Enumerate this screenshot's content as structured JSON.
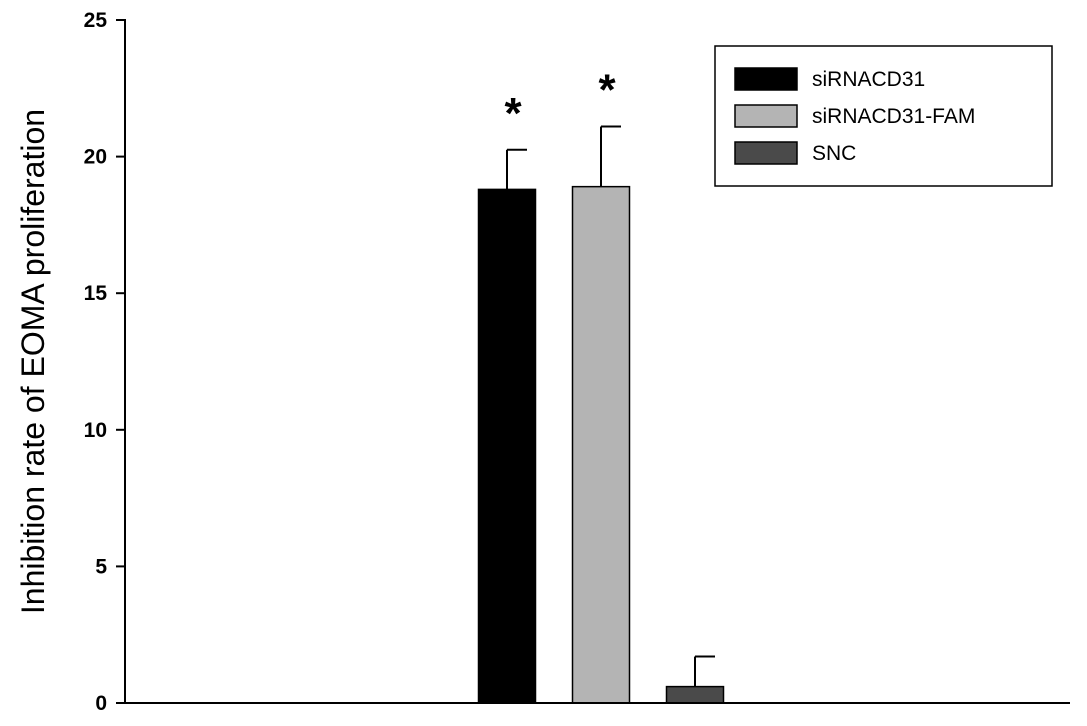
{
  "chart_data": {
    "type": "bar",
    "title": "",
    "xlabel": "",
    "ylabel": "Inhibition rate of EOMA proliferation",
    "ylim": [
      0,
      25
    ],
    "yticks": [
      0,
      5,
      10,
      15,
      20,
      25
    ],
    "yticks_labels": [
      "0",
      "5",
      "10",
      "15",
      "20",
      "25"
    ],
    "grid": false,
    "legend_position": "top-right",
    "series": [
      {
        "name": "siRNACD31",
        "value": 18.8,
        "error": 1.45,
        "color": "#000000",
        "annotation": "*"
      },
      {
        "name": "siRNACD31-FAM",
        "value": 18.9,
        "error": 2.2,
        "color": "#b4b4b4",
        "annotation": "*"
      },
      {
        "name": "SNC",
        "value": 0.6,
        "error": 1.1,
        "color": "#4a4a4a",
        "annotation": ""
      }
    ]
  }
}
